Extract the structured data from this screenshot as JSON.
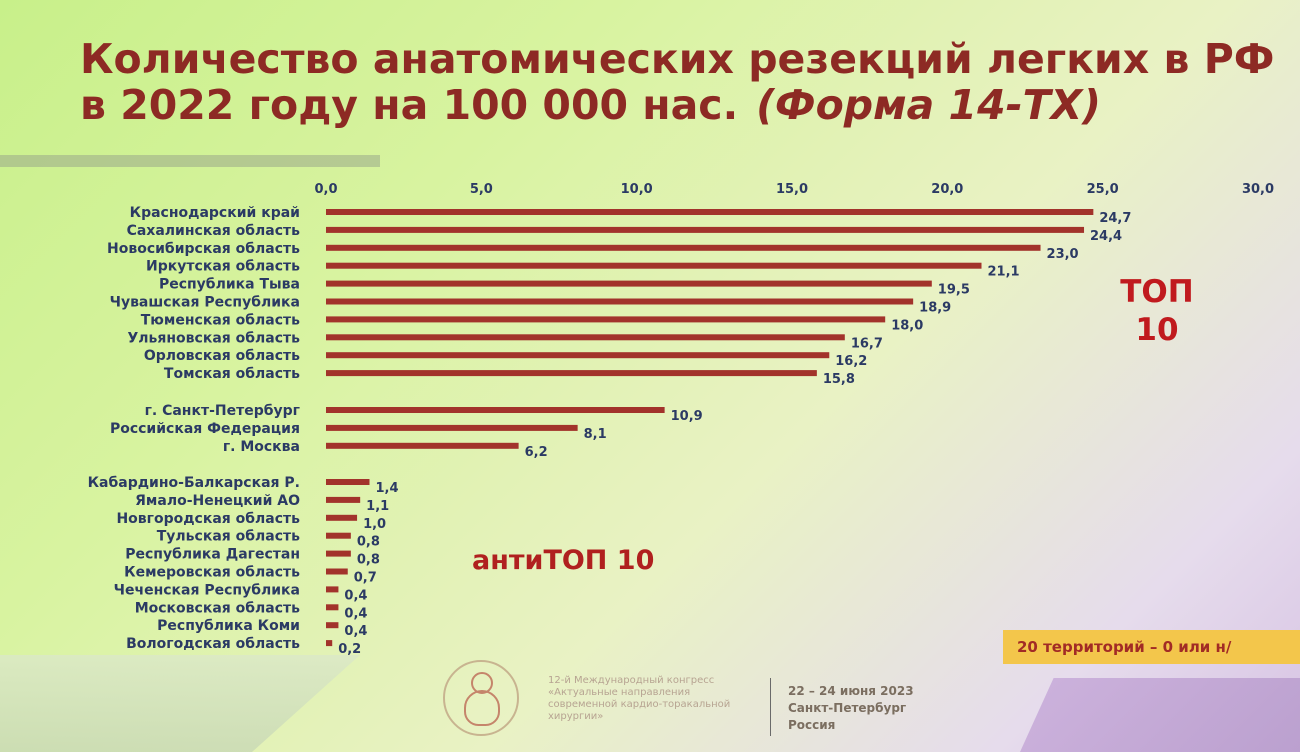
{
  "slide": {
    "title_main": "Количество анатомических резекций легких в РФ в 2022 году на 100 000 нас.",
    "title_form": "(Форма 14-ТХ)",
    "top10_label": "ТОП 10",
    "antitop10_label": "антиТОП 10",
    "badge_text": "20 территорий – 0 или н/",
    "footer": {
      "congress_text": "12-й Международный конгресс «Актуальные направления современной кардио-торакальной хирургии»",
      "dates": "22 – 24 июня 2023",
      "city": "Санкт-Петербург",
      "country": "Россия"
    }
  },
  "chart_data": {
    "type": "bar",
    "orientation": "horizontal",
    "title": "Количество анатомических резекций легких в РФ в 2022 году на 100 000 нас. (Форма 14-ТХ)",
    "xlim": [
      0,
      30
    ],
    "xticks": [
      "0,0",
      "5,0",
      "10,0",
      "15,0",
      "20,0",
      "25,0",
      "30,0"
    ],
    "bar_color": "#a2332b",
    "groups": [
      {
        "name": "ТОП 10",
        "categories": [
          "Краснодарский край",
          "Сахалинская область",
          "Новосибирская область",
          "Иркутская область",
          "Республика Тыва",
          "Чувашская Республика",
          "Тюменская область",
          "Ульяновская область",
          "Орловская область",
          "Томская область"
        ],
        "values": [
          24.7,
          24.4,
          23.0,
          21.1,
          19.5,
          18.9,
          18.0,
          16.7,
          16.2,
          15.8
        ],
        "labels": [
          "24,7",
          "24,4",
          "23,0",
          "21,1",
          "19,5",
          "18,9",
          "18,0",
          "16,7",
          "16,2",
          "15,8"
        ]
      },
      {
        "name": "",
        "categories": [
          "г. Санкт-Петербург",
          "Российская Федерация",
          "г. Москва"
        ],
        "values": [
          10.9,
          8.1,
          6.2
        ],
        "labels": [
          "10,9",
          "8,1",
          "6,2"
        ]
      },
      {
        "name": "антиТОП 10",
        "categories": [
          "Кабардино-Балкарская Р.",
          "Ямало-Ненецкий АО",
          "Новгородская область",
          "Тульская область",
          "Республика Дагестан",
          "Кемеровская область",
          "Чеченская Республика",
          "Московская область",
          "Республика Коми",
          "Вологодская область"
        ],
        "values": [
          1.4,
          1.1,
          1.0,
          0.8,
          0.8,
          0.7,
          0.4,
          0.4,
          0.4,
          0.2
        ],
        "labels": [
          "1,4",
          "1,1",
          "1,0",
          "0,8",
          "0,8",
          "0,7",
          "0,4",
          "0,4",
          "0,4",
          "0,2"
        ]
      }
    ]
  }
}
